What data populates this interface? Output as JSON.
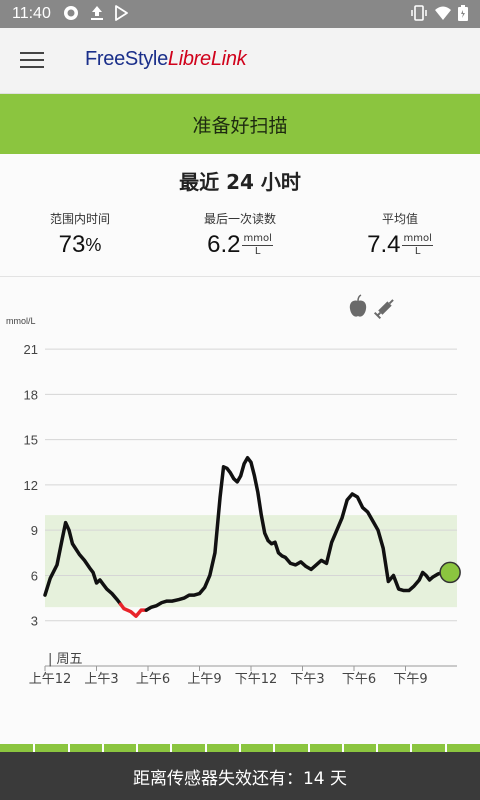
{
  "status_bar": {
    "time": "11:40",
    "icons": [
      "record-icon",
      "upload-icon",
      "play-store-icon",
      "vibrate-icon",
      "wifi-icon",
      "battery-icon"
    ]
  },
  "app_bar": {
    "logo_brand": "FreeStyle",
    "logo_sub": "LibreLink"
  },
  "banner": {
    "label": "准备好扫描"
  },
  "summary": {
    "title": "最近 24 小时",
    "in_range_label": "范围内时间",
    "in_range_value": "73",
    "in_range_unit": "%",
    "last_label": "最后一次读数",
    "last_value": "6.2",
    "average_label": "平均值",
    "average_value": "7.4",
    "unit_top": "mmol",
    "unit_bottom": "L"
  },
  "colors": {
    "accent": "#8bc53f",
    "target_band": "#e6f1dc",
    "low_segment": "#e8242a",
    "line": "#111111"
  },
  "chart_data": {
    "type": "line",
    "ylabel": "mmol/L",
    "ylim": [
      0,
      22
    ],
    "yticks": [
      3,
      6,
      9,
      12,
      15,
      18,
      21
    ],
    "xlim": [
      0,
      24
    ],
    "xticks": [
      0,
      3,
      6,
      9,
      12,
      15,
      18,
      21
    ],
    "xtick_labels": [
      "上午12",
      "上午3",
      "上午6",
      "上午9",
      "下午12",
      "下午3",
      "下午6",
      "下午9"
    ],
    "day_marker": "周五",
    "target_range": [
      3.9,
      10.0
    ],
    "low_threshold": 3.9,
    "last_point": {
      "x": 23.6,
      "y": 6.2
    },
    "series": [
      {
        "x": [
          0.0,
          0.3,
          0.7,
          1.0,
          1.2,
          1.4,
          1.6,
          2.0,
          2.3,
          2.6,
          2.8,
          3.0,
          3.2,
          3.4,
          3.6,
          3.9,
          4.2,
          4.4,
          4.6,
          4.8,
          5.0,
          5.3,
          5.6,
          5.9,
          6.2,
          6.5,
          6.8,
          7.1,
          7.4,
          7.8,
          8.1,
          8.4,
          8.7,
          9.0,
          9.3,
          9.6,
          9.9,
          10.2,
          10.4,
          10.6,
          10.8,
          11.0,
          11.2,
          11.4,
          11.6,
          11.8,
          12.0,
          12.2,
          12.4,
          12.6,
          12.8,
          13.0,
          13.2,
          13.4,
          13.6,
          13.8,
          14.0,
          14.3,
          14.6,
          14.9,
          15.2,
          15.5,
          15.8,
          16.1,
          16.4,
          16.7,
          17.0,
          17.3,
          17.6,
          17.9,
          18.2,
          18.5,
          18.8,
          19.1,
          19.4,
          19.7,
          20.0,
          20.3,
          20.6,
          20.9,
          21.2,
          21.5,
          21.8,
          22.0,
          22.2,
          22.4,
          22.6,
          22.9,
          23.2,
          23.6
        ],
        "values": [
          4.7,
          5.8,
          6.7,
          8.4,
          9.5,
          9.0,
          8.1,
          7.4,
          7.0,
          6.5,
          6.2,
          5.5,
          5.7,
          5.4,
          5.1,
          4.8,
          4.4,
          4.1,
          3.8,
          3.7,
          3.6,
          3.3,
          3.7,
          3.7,
          3.9,
          4.0,
          4.2,
          4.3,
          4.3,
          4.4,
          4.5,
          4.7,
          4.7,
          4.8,
          5.2,
          6.0,
          7.5,
          11.2,
          13.2,
          13.1,
          12.8,
          12.4,
          12.2,
          12.6,
          13.4,
          13.8,
          13.5,
          12.6,
          11.5,
          10.0,
          8.8,
          8.3,
          8.1,
          8.2,
          7.5,
          7.3,
          7.2,
          6.8,
          6.7,
          6.9,
          6.6,
          6.4,
          6.7,
          7.0,
          6.8,
          8.2,
          9.0,
          9.8,
          11.0,
          11.4,
          11.2,
          10.5,
          10.2,
          9.6,
          9.0,
          7.8,
          5.6,
          6.0,
          5.1,
          5.0,
          5.0,
          5.3,
          5.7,
          6.2,
          6.0,
          5.7,
          5.9,
          6.1,
          6.2,
          6.2
        ]
      }
    ]
  },
  "footer": {
    "life_text": "距离传感器失效还有：14 天",
    "life_segments": 14
  }
}
